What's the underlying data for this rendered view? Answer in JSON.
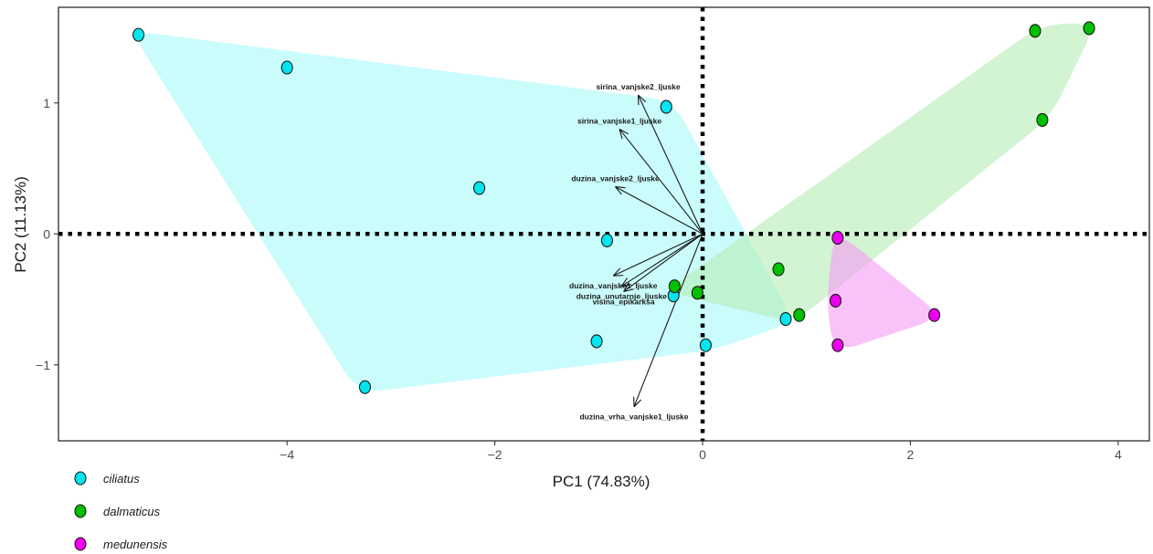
{
  "chart_data": {
    "type": "scatter",
    "title": "",
    "xlabel": "PC1 (74.83%)",
    "ylabel": "PC2 (11.13%)",
    "xlim": [
      -6.2,
      4.3
    ],
    "ylim": [
      -1.58,
      1.73
    ],
    "xticks": [
      -4,
      -2,
      0,
      2,
      4
    ],
    "yticks": [
      -1,
      0,
      1
    ],
    "grid": false,
    "legend_position": "bottom-left",
    "reference_lines": {
      "x": 0,
      "y": 0,
      "style": "dotted"
    },
    "series": [
      {
        "name": "ciliatus",
        "color": "#00e5ee",
        "hull_color": "#a6fafa",
        "points": [
          [
            -5.43,
            1.52
          ],
          [
            -4.0,
            1.27
          ],
          [
            -3.25,
            -1.17
          ],
          [
            -2.15,
            0.35
          ],
          [
            -0.35,
            0.97
          ],
          [
            -0.92,
            -0.05
          ],
          [
            -1.02,
            -0.82
          ],
          [
            -0.28,
            -0.47
          ],
          [
            0.03,
            -0.85
          ],
          [
            0.8,
            -0.65
          ]
        ]
      },
      {
        "name": "dalmaticus",
        "color": "#00c000",
        "hull_color": "#b4ecb4",
        "points": [
          [
            3.2,
            1.55
          ],
          [
            3.72,
            1.57
          ],
          [
            3.27,
            0.87
          ],
          [
            0.73,
            -0.27
          ],
          [
            0.93,
            -0.62
          ],
          [
            -0.27,
            -0.4
          ],
          [
            -0.05,
            -0.45
          ]
        ]
      },
      {
        "name": "medunensis",
        "color": "#ee00ee",
        "hull_color": "#f59af5",
        "points": [
          [
            1.3,
            -0.03
          ],
          [
            1.28,
            -0.51
          ],
          [
            2.23,
            -0.62
          ],
          [
            1.3,
            -0.85
          ]
        ]
      }
    ],
    "loadings": [
      {
        "label": "sirina_vanjske2_ljuske",
        "x": -0.62,
        "y": 1.06
      },
      {
        "label": "sirina_vanjske1_ljuske",
        "x": -0.8,
        "y": 0.8
      },
      {
        "label": "duzina_vanjske2_ljuske",
        "x": -0.84,
        "y": 0.36
      },
      {
        "label": "duzina_vanjske1_ljuske",
        "x": -0.86,
        "y": -0.32
      },
      {
        "label": "duzina_unutarnje_ljuske",
        "x": -0.78,
        "y": -0.4
      },
      {
        "label": "visina_epikarksa",
        "x": -0.76,
        "y": -0.44
      },
      {
        "label": "duzina_vrha_vanjske1_ljuske",
        "x": -0.66,
        "y": -1.32
      }
    ]
  }
}
